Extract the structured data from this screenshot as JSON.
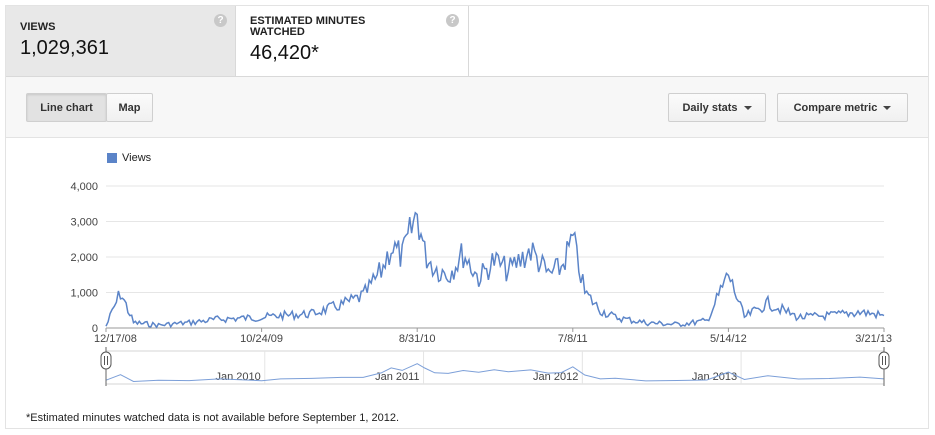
{
  "metrics": [
    {
      "label": "VIEWS",
      "value": "1,029,361",
      "selected": true
    },
    {
      "label": "ESTIMATED MINUTES WATCHED",
      "value": "46,420*",
      "selected": false
    }
  ],
  "help_icon_glyph": "?",
  "toolbar": {
    "line_chart_label": "Line chart",
    "map_label": "Map",
    "daily_stats_label": "Daily stats",
    "compare_metric_label": "Compare metric"
  },
  "colors": {
    "series": "#5b84c8",
    "overview": "#7c9fd8",
    "axis_text": "#444444",
    "grid": "#e6e6e6"
  },
  "chart_data": {
    "type": "line",
    "legend": [
      "Views"
    ],
    "y_ticks": [
      "4,000",
      "3,000",
      "2,000",
      "1,000",
      "0"
    ],
    "ylim": [
      0,
      4000
    ],
    "x_tick_labels": [
      "12/17/08",
      "10/24/09",
      "8/31/10",
      "7/8/11",
      "5/14/12",
      "3/21/13"
    ],
    "overview_labels": [
      "Jan 2010",
      "Jan 2011",
      "Jan 2012",
      "Jan 2013"
    ],
    "series": [
      {
        "name": "Views",
        "x": [
          "12/17/08",
          "1/15/09",
          "2/10/09",
          "4/1/09",
          "6/1/09",
          "8/1/09",
          "10/24/09",
          "12/1/09",
          "2/1/10",
          "4/1/10",
          "5/15/10",
          "6/20/10",
          "7/10/10",
          "8/1/10",
          "8/31/10",
          "9/15/10",
          "10/5/10",
          "11/1/10",
          "12/1/10",
          "1/1/11",
          "2/1/11",
          "3/1/11",
          "4/15/11",
          "5/20/11",
          "6/15/11",
          "7/8/11",
          "8/1/11",
          "9/1/11",
          "10/1/11",
          "12/1/11",
          "2/1/12",
          "4/1/12",
          "5/14/12",
          "6/15/12",
          "8/1/12",
          "10/1/12",
          "12/1/12",
          "2/1/13",
          "3/21/13"
        ],
        "values": [
          50,
          1000,
          150,
          80,
          150,
          250,
          300,
          350,
          400,
          650,
          900,
          1600,
          2300,
          2000,
          3250,
          2100,
          1700,
          1500,
          2100,
          1400,
          1900,
          1600,
          2200,
          1500,
          1700,
          2500,
          1000,
          500,
          300,
          150,
          100,
          200,
          1500,
          300,
          700,
          300,
          350,
          450,
          350
        ]
      }
    ]
  },
  "footnote": "*Estimated minutes watched data is not available before September 1, 2012."
}
